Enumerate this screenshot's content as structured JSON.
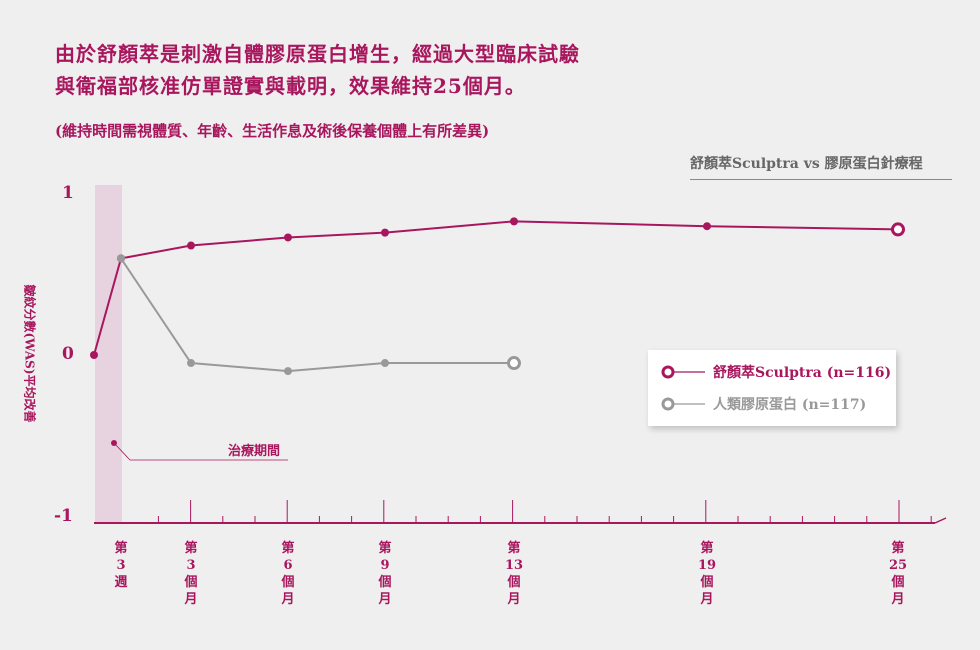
{
  "header": {
    "line1": "由於舒顏萃是刺激自體膠原蛋白增生，經過大型臨床試驗",
    "line2": "與衛福部核准仿單證實與載明，效果維持25個月。",
    "note": "(維持時間需視體質、年齡、生活作息及術後保養個體上有所差異)"
  },
  "chart_data": {
    "type": "line",
    "title": "舒顏萃Sculptra vs 膠原蛋白針療程",
    "ylabel": "皺紋分數(WAS)平均改善",
    "ylim": [
      -1,
      1
    ],
    "yticks": [
      "1",
      "0",
      "-1"
    ],
    "categories": [
      "0",
      "第3週",
      "第3個月",
      "第6個月",
      "第9個月",
      "第13個月",
      "第19個月",
      "第25個月"
    ],
    "x_months": [
      0,
      0.75,
      3,
      6,
      9,
      13,
      19,
      25
    ],
    "xtick_labels": [
      [
        "第",
        "3",
        "週"
      ],
      [
        "第",
        "3",
        "個",
        "月"
      ],
      [
        "第",
        "6",
        "個",
        "月"
      ],
      [
        "第",
        "9",
        "個",
        "月"
      ],
      [
        "第",
        "13",
        "個",
        "月"
      ],
      [
        "第",
        "19",
        "個",
        "月"
      ],
      [
        "第",
        "25",
        "個",
        "月"
      ]
    ],
    "series": [
      {
        "name": "舒顏萃Sculptra (n=116)",
        "color": "#a8175e",
        "values": [
          0,
          0.6,
          0.68,
          0.73,
          0.76,
          0.83,
          0.8,
          0.78
        ]
      },
      {
        "name": "人類膠原蛋白 (n=117)",
        "color": "#999999",
        "values": [
          null,
          0.6,
          -0.05,
          -0.1,
          -0.05,
          -0.05,
          null,
          null
        ]
      }
    ],
    "annotation": "治療期間",
    "legend": "right"
  }
}
